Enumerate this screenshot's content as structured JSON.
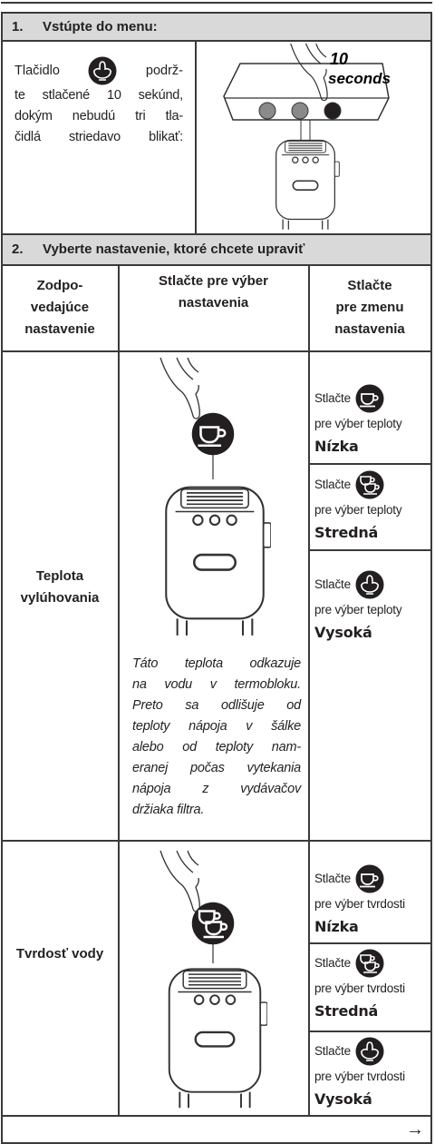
{
  "step1": {
    "number": "1.",
    "title": "Vstúpte do menu:",
    "text_lines": [
      "Tlačidlo",
      "podrž-",
      "te stlačené 10 sekúnd,",
      "dokým nebudú tri tla-",
      "čidlá striedavo blikať:"
    ],
    "illustration_labels": [
      "10",
      "seconds"
    ]
  },
  "step2": {
    "number": "2.",
    "title": "Vyberte nastavenie, ktoré chcete upraviť"
  },
  "table": {
    "header": [
      [
        "Zodpo-",
        "vedajúce",
        "nastavenie"
      ],
      [
        "Stlačte pre výber",
        "nastavenia"
      ],
      [
        "Stlačte",
        "pre zmenu",
        "nastavenia"
      ]
    ],
    "rows": [
      {
        "setting": [
          "Teplota",
          "vylúhovania"
        ],
        "note": [
          "Táto teplota odkazuje",
          "na vodu v termobloku.",
          "Preto sa odlišuje od",
          "teploty nápoja v šálke",
          "alebo od teploty nam-",
          "eranej počas vytekania",
          "nápoja z vydávačov",
          "držiaka filtra."
        ],
        "options": [
          {
            "press": "Stlačte",
            "desc": "pre výber teploty",
            "level": "Nízka"
          },
          {
            "press": "Stlačte",
            "desc": "pre výber teploty",
            "level": "Stredná"
          },
          {
            "press": "Stlačte",
            "desc": "pre výber teploty",
            "level": "Vysoká"
          }
        ]
      },
      {
        "setting": [
          "Tvrdosť vody"
        ],
        "options": [
          {
            "press": "Stlačte",
            "desc": "pre výber tvrdosti",
            "level": "Nízka"
          },
          {
            "press": "Stlačte",
            "desc": "pre výber tvrdosti",
            "level": "Stredná"
          },
          {
            "press": "Stlačte",
            "desc": "pre výber tvrdosti",
            "level": "Vysoká"
          }
        ]
      }
    ]
  },
  "footer": {
    "arrow": "→"
  }
}
